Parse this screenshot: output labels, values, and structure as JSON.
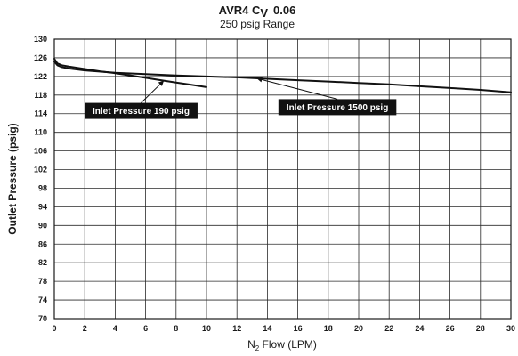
{
  "chart_data": {
    "type": "line",
    "title_main": "AVR4 C",
    "title_sub_script": "V",
    "title_value": "0.06",
    "subtitle": "250 psig Range",
    "xlabel_prefix": "N",
    "xlabel_sub": "2",
    "xlabel_suffix": " Flow (LPM)",
    "ylabel": "Outlet Pressure (psig)",
    "xlim": [
      0,
      30
    ],
    "ylim": [
      70,
      130
    ],
    "x_ticks": [
      0,
      2,
      4,
      6,
      8,
      10,
      12,
      14,
      16,
      18,
      20,
      22,
      24,
      26,
      28,
      30
    ],
    "y_ticks": [
      70,
      74,
      78,
      82,
      86,
      90,
      94,
      98,
      102,
      106,
      110,
      114,
      118,
      122,
      126,
      130
    ],
    "grid": true,
    "series": [
      {
        "name": "Inlet Pressure 190 psig",
        "x": [
          0,
          0.2,
          0.5,
          1,
          2,
          3,
          4,
          5,
          6,
          7,
          8,
          9,
          10
        ],
        "y": [
          125.8,
          124.8,
          124.4,
          124.1,
          123.6,
          123.1,
          122.7,
          122.2,
          121.7,
          121.2,
          120.7,
          120.2,
          119.7
        ]
      },
      {
        "name": "Inlet Pressure 1500 psig",
        "x": [
          0,
          0.2,
          0.5,
          1,
          2,
          4,
          6,
          8,
          10,
          12,
          14,
          16,
          18,
          20,
          22,
          24,
          26,
          28,
          30
        ],
        "y": [
          125.2,
          124.4,
          124.0,
          123.7,
          123.3,
          122.8,
          122.5,
          122.2,
          122.0,
          121.8,
          121.5,
          121.2,
          120.9,
          120.6,
          120.3,
          119.9,
          119.5,
          119.1,
          118.6
        ]
      }
    ],
    "annotations": [
      {
        "series": 0,
        "text": "Inlet Pressure 190 psig",
        "label_x": 5.7,
        "label_y": 114.6,
        "target_x": 7.2,
        "target_y": 121.1
      },
      {
        "series": 1,
        "text": "Inlet Pressure 1500 psig",
        "label_x": 18.6,
        "label_y": 115.4,
        "target_x": 13.3,
        "target_y": 121.6
      }
    ]
  }
}
